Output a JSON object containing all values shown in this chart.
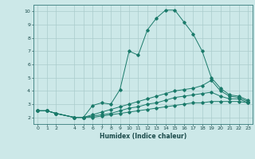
{
  "xlabel": "Humidex (Indice chaleur)",
  "ylabel": "",
  "bg_color": "#cce8e8",
  "grid_color": "#aacccc",
  "line_color": "#1a7a6a",
  "xlim": [
    -0.5,
    23.5
  ],
  "ylim": [
    1.5,
    10.5
  ],
  "xticks": [
    0,
    1,
    2,
    4,
    5,
    6,
    7,
    8,
    9,
    10,
    11,
    12,
    13,
    14,
    15,
    16,
    17,
    18,
    19,
    20,
    21,
    22,
    23
  ],
  "yticks": [
    2,
    3,
    4,
    5,
    6,
    7,
    8,
    9,
    10
  ],
  "lines": [
    {
      "x": [
        0,
        1,
        2,
        4,
        5,
        6,
        7,
        8,
        9,
        10,
        11,
        12,
        13,
        14,
        15,
        16,
        17,
        18,
        19,
        20,
        21,
        22,
        23
      ],
      "y": [
        2.5,
        2.5,
        2.3,
        2.0,
        2.0,
        2.9,
        3.1,
        3.0,
        4.1,
        7.0,
        6.7,
        8.6,
        9.5,
        10.1,
        10.1,
        9.2,
        8.3,
        7.0,
        5.0,
        4.2,
        3.7,
        3.6,
        3.3
      ]
    },
    {
      "x": [
        0,
        1,
        2,
        4,
        5,
        6,
        7,
        8,
        9,
        10,
        11,
        12,
        13,
        14,
        15,
        16,
        17,
        18,
        19,
        20,
        21,
        22,
        23
      ],
      "y": [
        2.5,
        2.5,
        2.3,
        2.0,
        2.0,
        2.2,
        2.4,
        2.6,
        2.8,
        3.0,
        3.2,
        3.4,
        3.6,
        3.8,
        4.0,
        4.1,
        4.2,
        4.4,
        4.8,
        4.0,
        3.6,
        3.5,
        3.2
      ]
    },
    {
      "x": [
        0,
        1,
        2,
        4,
        5,
        6,
        7,
        8,
        9,
        10,
        11,
        12,
        13,
        14,
        15,
        16,
        17,
        18,
        19,
        20,
        21,
        22,
        23
      ],
      "y": [
        2.5,
        2.5,
        2.3,
        2.0,
        2.0,
        2.1,
        2.2,
        2.3,
        2.5,
        2.7,
        2.8,
        3.0,
        3.1,
        3.3,
        3.5,
        3.6,
        3.7,
        3.8,
        3.9,
        3.6,
        3.4,
        3.4,
        3.1
      ]
    },
    {
      "x": [
        0,
        1,
        2,
        4,
        5,
        6,
        7,
        8,
        9,
        10,
        11,
        12,
        13,
        14,
        15,
        16,
        17,
        18,
        19,
        20,
        21,
        22,
        23
      ],
      "y": [
        2.5,
        2.5,
        2.3,
        2.0,
        2.0,
        2.0,
        2.1,
        2.2,
        2.3,
        2.4,
        2.5,
        2.6,
        2.7,
        2.8,
        2.9,
        3.0,
        3.1,
        3.1,
        3.2,
        3.2,
        3.2,
        3.2,
        3.1
      ]
    }
  ]
}
